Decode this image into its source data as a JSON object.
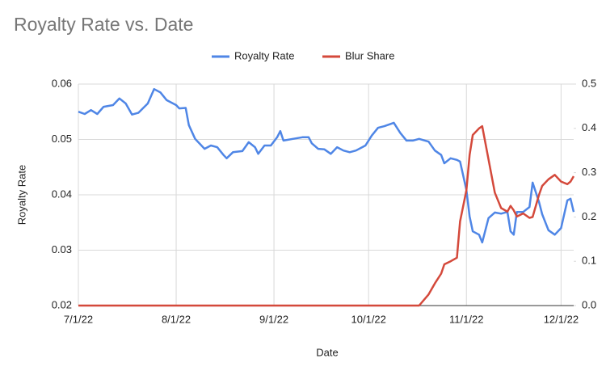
{
  "chart_data": {
    "type": "line",
    "title": "Royalty Rate vs. Date",
    "x_label": "Date",
    "y_label": "Royalty Rate",
    "x": [
      "2022-07-01",
      "2022-07-03",
      "2022-07-05",
      "2022-07-07",
      "2022-07-09",
      "2022-07-12",
      "2022-07-14",
      "2022-07-16",
      "2022-07-18",
      "2022-07-20",
      "2022-07-23",
      "2022-07-25",
      "2022-07-27",
      "2022-07-29",
      "2022-08-01",
      "2022-08-02",
      "2022-08-04",
      "2022-08-05",
      "2022-08-07",
      "2022-08-10",
      "2022-08-12",
      "2022-08-14",
      "2022-08-16",
      "2022-08-17",
      "2022-08-19",
      "2022-08-22",
      "2022-08-24",
      "2022-08-26",
      "2022-08-27",
      "2022-08-29",
      "2022-08-31",
      "2022-09-02",
      "2022-09-03",
      "2022-09-04",
      "2022-09-07",
      "2022-09-10",
      "2022-09-12",
      "2022-09-13",
      "2022-09-15",
      "2022-09-17",
      "2022-09-19",
      "2022-09-21",
      "2022-09-23",
      "2022-09-25",
      "2022-09-27",
      "2022-09-30",
      "2022-10-02",
      "2022-10-04",
      "2022-10-06",
      "2022-10-09",
      "2022-10-11",
      "2022-10-13",
      "2022-10-15",
      "2022-10-17",
      "2022-10-20",
      "2022-10-22",
      "2022-10-24",
      "2022-10-25",
      "2022-10-27",
      "2022-10-29",
      "2022-10-30",
      "2022-11-01",
      "2022-11-02",
      "2022-11-03",
      "2022-11-05",
      "2022-11-06",
      "2022-11-08",
      "2022-11-10",
      "2022-11-12",
      "2022-11-14",
      "2022-11-15",
      "2022-11-16",
      "2022-11-17",
      "2022-11-19",
      "2022-11-21",
      "2022-11-22",
      "2022-11-24",
      "2022-11-25",
      "2022-11-27",
      "2022-11-29",
      "2022-12-01",
      "2022-12-03",
      "2022-12-04",
      "2022-12-05"
    ],
    "series": [
      {
        "name": "Royalty Rate",
        "color": "#4f86e6",
        "axis": "y",
        "values": [
          0.055,
          0.0546,
          0.0553,
          0.0546,
          0.0559,
          0.0562,
          0.0574,
          0.0565,
          0.0545,
          0.0548,
          0.0565,
          0.0591,
          0.0585,
          0.0571,
          0.0562,
          0.0556,
          0.0557,
          0.0526,
          0.0501,
          0.0483,
          0.0489,
          0.0486,
          0.0472,
          0.0466,
          0.0477,
          0.0479,
          0.0495,
          0.0486,
          0.0474,
          0.0489,
          0.0489,
          0.0504,
          0.0515,
          0.0498,
          0.0501,
          0.0504,
          0.0504,
          0.0493,
          0.0483,
          0.0482,
          0.0474,
          0.0486,
          0.048,
          0.0477,
          0.048,
          0.0489,
          0.0507,
          0.0521,
          0.0524,
          0.053,
          0.0512,
          0.0498,
          0.0498,
          0.0501,
          0.0496,
          0.048,
          0.0472,
          0.0457,
          0.0466,
          0.0463,
          0.046,
          0.0409,
          0.0361,
          0.0334,
          0.0328,
          0.0314,
          0.0358,
          0.0368,
          0.0366,
          0.0369,
          0.0334,
          0.0328,
          0.0369,
          0.0369,
          0.0378,
          0.0422,
          0.0387,
          0.0365,
          0.0336,
          0.0328,
          0.034,
          0.039,
          0.0393,
          0.0369
        ]
      },
      {
        "name": "Blur Share",
        "color": "#d4493b",
        "axis": "y2",
        "values": [
          0,
          0,
          0,
          0,
          0,
          0,
          0,
          0,
          0,
          0,
          0,
          0,
          0,
          0,
          0,
          0,
          0,
          0,
          0,
          0,
          0,
          0,
          0,
          0,
          0,
          0,
          0,
          0,
          0,
          0,
          0,
          0,
          0,
          0,
          0,
          0,
          0,
          0,
          0,
          0,
          0,
          0,
          0,
          0,
          0,
          0,
          0,
          0,
          0,
          0,
          0,
          0,
          0,
          0,
          0.025,
          0.05,
          0.072,
          0.093,
          0.1,
          0.108,
          0.19,
          0.26,
          0.34,
          0.385,
          0.4,
          0.405,
          0.33,
          0.255,
          0.22,
          0.212,
          0.225,
          0.215,
          0.201,
          0.208,
          0.198,
          0.2,
          0.25,
          0.27,
          0.285,
          0.295,
          0.28,
          0.274,
          0.28,
          0.292
        ]
      }
    ],
    "xlim": [
      "2022-07-01",
      "2022-12-05"
    ],
    "xticks": [
      {
        "value": "2022-07-01",
        "label": "7/1/22"
      },
      {
        "value": "2022-08-01",
        "label": "8/1/22"
      },
      {
        "value": "2022-09-01",
        "label": "9/1/22"
      },
      {
        "value": "2022-10-01",
        "label": "10/1/22"
      },
      {
        "value": "2022-11-01",
        "label": "11/1/22"
      },
      {
        "value": "2022-12-01",
        "label": "12/1/22"
      }
    ],
    "ylim": [
      0.02,
      0.06
    ],
    "yticks": [
      0.02,
      0.03,
      0.04,
      0.05,
      0.06
    ],
    "y2lim": [
      0,
      0.5
    ],
    "y2ticks": [
      {
        "value": 0,
        "label": "0.0"
      },
      0.1,
      0.2,
      0.3,
      0.4,
      {
        "value": 0.5,
        "label": "0.5"
      }
    ],
    "grid": true,
    "legend": "top"
  }
}
